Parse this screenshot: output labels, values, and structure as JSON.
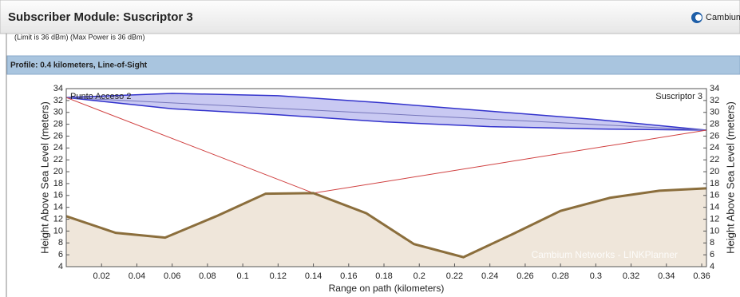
{
  "header": {
    "title": "Subscriber Module: Suscriptor 3",
    "brand": "Cambium N"
  },
  "clipped_line": "(Limit is 36 dBm)   (Max Power is 36 dBm)",
  "profile_bar": "Profile: 0.4 kilometers, Line-of-Sight",
  "chart_data": {
    "type": "line",
    "xlabel": "Range on path (kilometers)",
    "ylabel": "Height Above Sea Level (meters)",
    "y2label": "Height Above Sea Level (meters)",
    "left_site": "Punto Acceso 2",
    "right_site": "Suscriptor 3",
    "watermark": "Cambium Networks - LINKPlanner",
    "xlim": [
      0,
      0.3627
    ],
    "xticks": [
      0.02,
      0.04,
      0.06,
      0.08,
      0.1,
      0.12,
      0.14,
      0.16,
      0.18,
      0.2,
      0.22,
      0.24,
      0.26,
      0.28,
      0.3,
      0.32,
      0.34,
      0.36
    ],
    "ylim": [
      4,
      34
    ],
    "yticks": [
      4,
      6,
      8,
      10,
      12,
      14,
      16,
      18,
      20,
      22,
      24,
      26,
      28,
      30,
      32,
      34
    ],
    "y2lim": [
      4,
      34
    ],
    "y2ticks": [
      4,
      6,
      8,
      10,
      12,
      14,
      16,
      18,
      20,
      22,
      24,
      26,
      28,
      30,
      32,
      34
    ],
    "terrain": {
      "color": "#8b6e3c",
      "fill": "#efe6da",
      "x": [
        0,
        0.028,
        0.056,
        0.085,
        0.113,
        0.14,
        0.17,
        0.197,
        0.225,
        0.253,
        0.28,
        0.308,
        0.336,
        0.3627
      ],
      "y": [
        12.5,
        9.7,
        8.9,
        12.5,
        16.3,
        16.4,
        13,
        7.8,
        5.6,
        9.5,
        13.4,
        15.6,
        16.8,
        17.2
      ]
    },
    "line_of_sight": {
      "color": "#7777bb",
      "x": [
        0,
        0.3627
      ],
      "y": [
        32.5,
        27
      ]
    },
    "fresnel": {
      "color": "#3333cc",
      "fill": "#c9c9f2",
      "x": [
        0,
        0.06,
        0.12,
        0.18,
        0.24,
        0.3,
        0.3627
      ],
      "upper": [
        32.5,
        33.2,
        32.8,
        31.6,
        30.2,
        28.8,
        27
      ],
      "lower": [
        32.5,
        30.6,
        29.6,
        28.4,
        27.6,
        27.2,
        27
      ]
    },
    "reflection": {
      "color": "#d04040",
      "x": [
        0,
        0.14,
        0.3627
      ],
      "y": [
        32.5,
        16.4,
        27
      ]
    }
  }
}
